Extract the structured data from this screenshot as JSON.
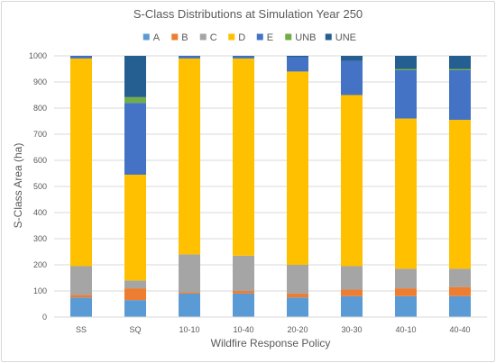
{
  "chart_data": {
    "type": "bar",
    "stacked": true,
    "title": "S-Class Distributions at Simulation Year 250",
    "xlabel": "Wildfire Response Policy",
    "ylabel": "S-Class Area (ha)",
    "ylim": [
      0,
      1000
    ],
    "yticks": [
      0,
      100,
      200,
      300,
      400,
      500,
      600,
      700,
      800,
      900,
      1000
    ],
    "grid": true,
    "legend_position": "top",
    "categories": [
      "SS",
      "SQ",
      "10-10",
      "10-40",
      "20-20",
      "30-30",
      "40-10",
      "40-40"
    ],
    "series": [
      {
        "name": "A",
        "color": "#5b9bd5",
        "values": [
          75,
          65,
          90,
          90,
          75,
          80,
          80,
          80
        ]
      },
      {
        "name": "B",
        "color": "#ed7d31",
        "values": [
          10,
          45,
          5,
          10,
          15,
          25,
          30,
          35
        ]
      },
      {
        "name": "C",
        "color": "#a5a5a5",
        "values": [
          110,
          30,
          145,
          135,
          110,
          90,
          75,
          70
        ]
      },
      {
        "name": "D",
        "color": "#ffc000",
        "values": [
          795,
          405,
          750,
          755,
          740,
          655,
          575,
          570
        ]
      },
      {
        "name": "E",
        "color": "#4472c4",
        "values": [
          8,
          275,
          8,
          8,
          55,
          130,
          185,
          190
        ]
      },
      {
        "name": "UNB",
        "color": "#70ad47",
        "values": [
          0,
          22,
          0,
          0,
          0,
          0,
          5,
          5
        ]
      },
      {
        "name": "UNE",
        "color": "#255e91",
        "values": [
          2,
          158,
          2,
          2,
          5,
          20,
          50,
          50
        ]
      }
    ]
  }
}
